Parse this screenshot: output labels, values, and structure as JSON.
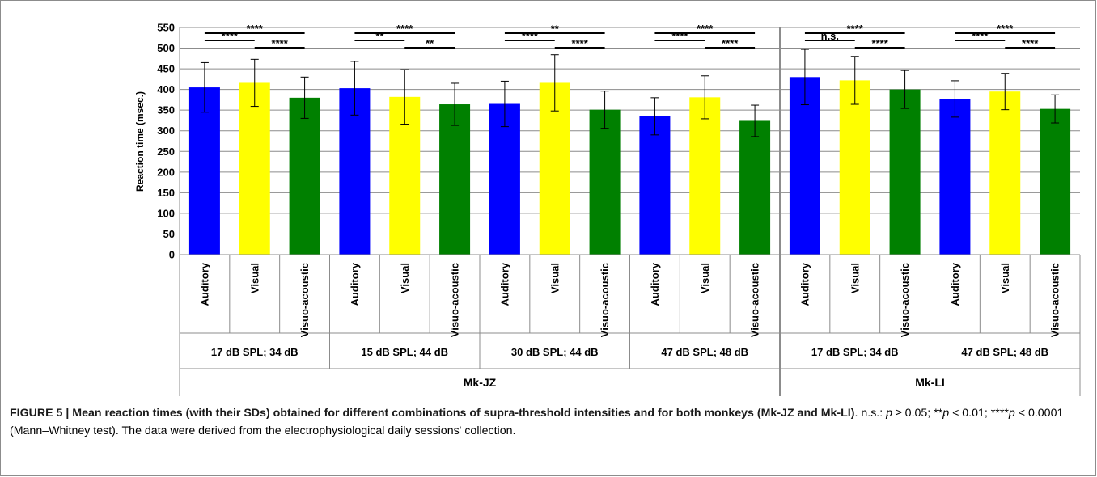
{
  "chart_data": {
    "type": "bar",
    "ylabel": "Reaction time (msec.)",
    "ylim": [
      0,
      550
    ],
    "yticks": [
      0,
      50,
      100,
      150,
      200,
      250,
      300,
      350,
      400,
      450,
      500,
      550
    ],
    "grid": true,
    "categories": [
      "Auditory",
      "Visual",
      "Visuo-acoustic"
    ],
    "colors": {
      "Auditory": "#0000ff",
      "Visual": "#ffff00",
      "Visuo-acoustic": "#008000"
    },
    "monkeys": [
      {
        "label": "Mk-JZ",
        "groups": [
          {
            "label": "17 dB SPL; 34 dB",
            "values": [
              405,
              416,
              380
            ],
            "sd": [
              60,
              57,
              50
            ],
            "sig": {
              "auditory_visual": "****",
              "visual_visuoacoustic": "****",
              "auditory_visuoacoustic": "****"
            }
          },
          {
            "label": "15 dB SPL; 44 dB",
            "values": [
              403,
              382,
              364
            ],
            "sd": [
              65,
              66,
              51
            ],
            "sig": {
              "auditory_visual": "**",
              "visual_visuoacoustic": "**",
              "auditory_visuoacoustic": "****"
            }
          },
          {
            "label": "30 dB SPL; 44 dB",
            "values": [
              365,
              416,
              351
            ],
            "sd": [
              55,
              68,
              45
            ],
            "sig": {
              "auditory_visual": "****",
              "visual_visuoacoustic": "****",
              "auditory_visuoacoustic": "**"
            }
          },
          {
            "label": "47 dB SPL; 48 dB",
            "values": [
              335,
              381,
              324
            ],
            "sd": [
              45,
              52,
              38
            ],
            "sig": {
              "auditory_visual": "****",
              "visual_visuoacoustic": "****",
              "auditory_visuoacoustic": "****"
            }
          }
        ]
      },
      {
        "label": "Mk-LI",
        "groups": [
          {
            "label": "17 dB SPL; 34 dB",
            "values": [
              430,
              422,
              400
            ],
            "sd": [
              67,
              58,
              46
            ],
            "sig": {
              "auditory_visual": "n.s.",
              "visual_visuoacoustic": "****",
              "auditory_visuoacoustic": "****"
            }
          },
          {
            "label": "47 dB SPL; 48 dB",
            "values": [
              377,
              395,
              353
            ],
            "sd": [
              44,
              44,
              34
            ],
            "sig": {
              "auditory_visual": "****",
              "visual_visuoacoustic": "****",
              "auditory_visuoacoustic": "****"
            }
          }
        ]
      }
    ]
  },
  "caption": {
    "figure_label": "FIGURE 5 | Mean reaction times (with their SDs) obtained for different combinations of supra-threshold intensities and for both monkeys (Mk-JZ and Mk-LI)",
    "stats_ns": ". n.s.: ",
    "p1": "p",
    "t1": " ≥ 0.05; **",
    "p2": "p",
    "t2": " < 0.01; ****",
    "p3": "p",
    "t3": " < 0.0001 (Mann–Whitney test). The data were derived from the electrophysiological daily sessions' collection."
  }
}
